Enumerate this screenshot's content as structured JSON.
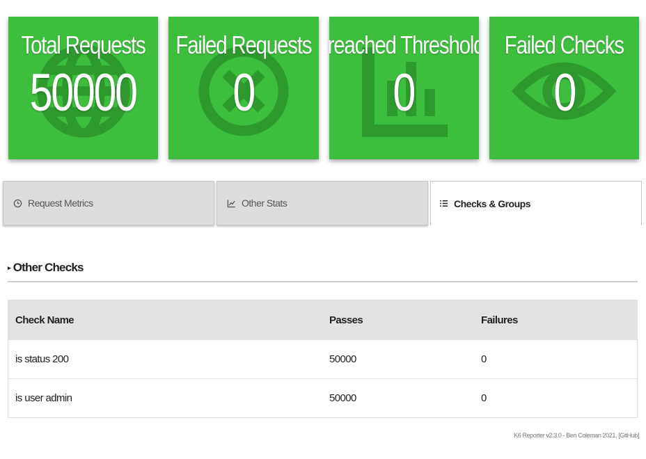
{
  "cards": [
    {
      "title": "Total Requests",
      "value": "50000",
      "icon": "globe-icon"
    },
    {
      "title": "Failed Requests",
      "value": "0",
      "icon": "close-circle-icon"
    },
    {
      "title": "Breached Thresholds",
      "value": "0",
      "icon": "chart-icon"
    },
    {
      "title": "Failed Checks",
      "value": "0",
      "icon": "eye-icon"
    }
  ],
  "tabs": [
    {
      "label": "Request Metrics",
      "icon": "clock-icon",
      "active": false
    },
    {
      "label": "Other Stats",
      "icon": "line-chart-icon",
      "active": false
    },
    {
      "label": "Checks & Groups",
      "icon": "list-icon",
      "active": true
    }
  ],
  "section": {
    "title": "Other Checks"
  },
  "table": {
    "headers": [
      "Check Name",
      "Passes",
      "Failures"
    ],
    "rows": [
      [
        "is status 200",
        "50000",
        "0"
      ],
      [
        "is user admin",
        "50000",
        "0"
      ]
    ]
  },
  "footer": {
    "text": "K6 Reporter v2.3.0 - Ben Coleman 2021,",
    "link": "[GitHub]"
  },
  "colors": {
    "card_green": "#3dbe3d",
    "icon_green": "#2e9a2e"
  }
}
